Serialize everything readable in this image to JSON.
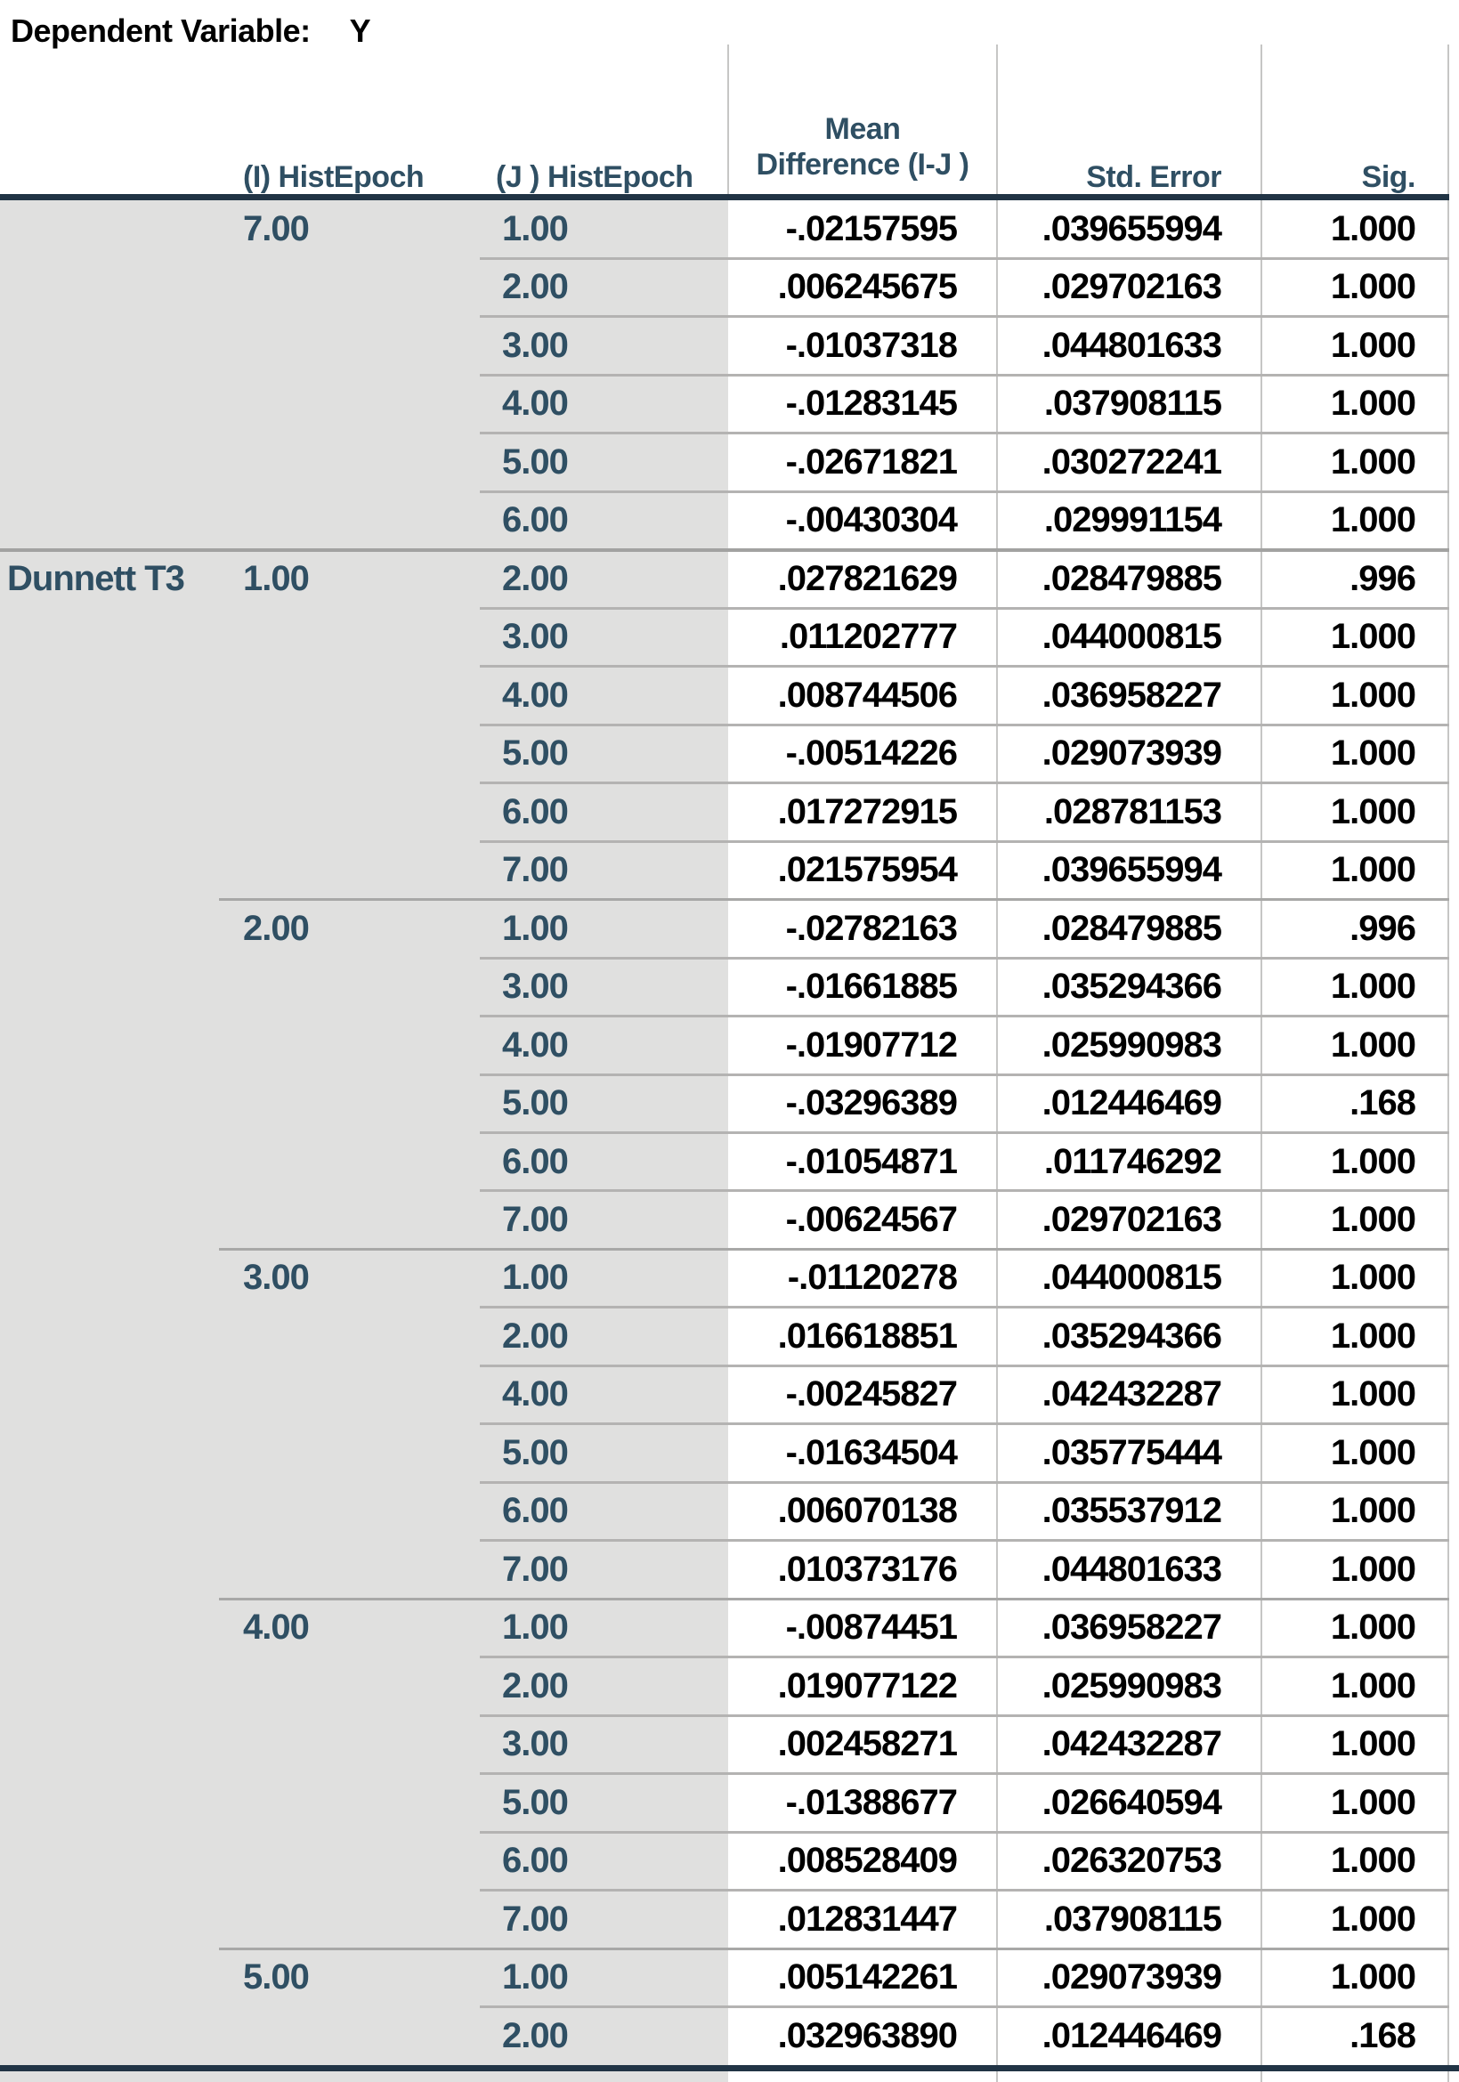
{
  "title": {
    "label": "Dependent Variable:",
    "value": "Y"
  },
  "columns": {
    "i_header": "(I) HistEpoch",
    "j_header": "(J ) HistEpoch",
    "mean_diff_line1": "Mean",
    "mean_diff_line2": "Difference (I-J )",
    "std_error": "Std. Error",
    "sig": "Sig."
  },
  "test_label": "Dunnett T3",
  "groups": [
    {
      "i": "7.00",
      "rows": [
        [
          "1.00",
          "-.02157595",
          ".039655994",
          "1.000"
        ],
        [
          "2.00",
          ".006245675",
          ".029702163",
          "1.000"
        ],
        [
          "3.00",
          "-.01037318",
          ".044801633",
          "1.000"
        ],
        [
          "4.00",
          "-.01283145",
          ".037908115",
          "1.000"
        ],
        [
          "5.00",
          "-.02671821",
          ".030272241",
          "1.000"
        ],
        [
          "6.00",
          "-.00430304",
          ".029991154",
          "1.000"
        ]
      ]
    },
    {
      "i": "1.00",
      "test_label_here": true,
      "rows": [
        [
          "2.00",
          ".027821629",
          ".028479885",
          ".996"
        ],
        [
          "3.00",
          ".011202777",
          ".044000815",
          "1.000"
        ],
        [
          "4.00",
          ".008744506",
          ".036958227",
          "1.000"
        ],
        [
          "5.00",
          "-.00514226",
          ".029073939",
          "1.000"
        ],
        [
          "6.00",
          ".017272915",
          ".028781153",
          "1.000"
        ],
        [
          "7.00",
          ".021575954",
          ".039655994",
          "1.000"
        ]
      ]
    },
    {
      "i": "2.00",
      "rows": [
        [
          "1.00",
          "-.02782163",
          ".028479885",
          ".996"
        ],
        [
          "3.00",
          "-.01661885",
          ".035294366",
          "1.000"
        ],
        [
          "4.00",
          "-.01907712",
          ".025990983",
          "1.000"
        ],
        [
          "5.00",
          "-.03296389",
          ".012446469",
          ".168"
        ],
        [
          "6.00",
          "-.01054871",
          ".011746292",
          "1.000"
        ],
        [
          "7.00",
          "-.00624567",
          ".029702163",
          "1.000"
        ]
      ]
    },
    {
      "i": "3.00",
      "rows": [
        [
          "1.00",
          "-.01120278",
          ".044000815",
          "1.000"
        ],
        [
          "2.00",
          ".016618851",
          ".035294366",
          "1.000"
        ],
        [
          "4.00",
          "-.00245827",
          ".042432287",
          "1.000"
        ],
        [
          "5.00",
          "-.01634504",
          ".035775444",
          "1.000"
        ],
        [
          "6.00",
          ".006070138",
          ".035537912",
          "1.000"
        ],
        [
          "7.00",
          ".010373176",
          ".044801633",
          "1.000"
        ]
      ]
    },
    {
      "i": "4.00",
      "rows": [
        [
          "1.00",
          "-.00874451",
          ".036958227",
          "1.000"
        ],
        [
          "2.00",
          ".019077122",
          ".025990983",
          "1.000"
        ],
        [
          "3.00",
          ".002458271",
          ".042432287",
          "1.000"
        ],
        [
          "5.00",
          "-.01388677",
          ".026640594",
          "1.000"
        ],
        [
          "6.00",
          ".008528409",
          ".026320753",
          "1.000"
        ],
        [
          "7.00",
          ".012831447",
          ".037908115",
          "1.000"
        ]
      ]
    },
    {
      "i": "5.00",
      "rows": [
        [
          "1.00",
          ".005142261",
          ".029073939",
          "1.000"
        ],
        [
          "2.00",
          ".032963890",
          ".012446469",
          ".168"
        ]
      ]
    }
  ],
  "colors": {
    "header_text": "#2f4f63",
    "value_text": "#000000",
    "thick_rule": "#213445",
    "row_label_bg": "#e0e0df",
    "grid_line": "#c6c6c5",
    "row_separator": "#b4b3b2"
  }
}
